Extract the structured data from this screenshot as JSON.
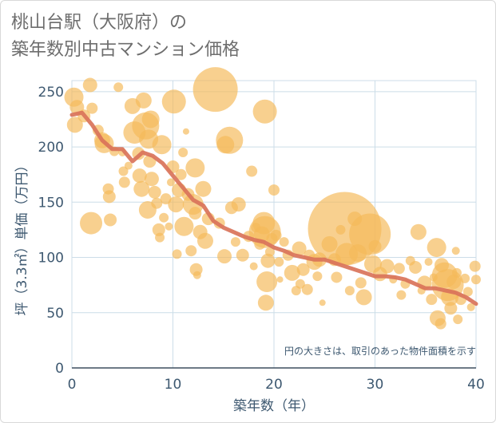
{
  "title_line1": "桃山台駅（大阪府）の",
  "title_line2": "築年数別中古マンション価格",
  "colors": {
    "bubble": "#f5b95a",
    "line": "#d9735a",
    "grid": "#ccdde8",
    "axis": "#3d4f5f",
    "text": "#3d5870"
  },
  "chart_data": {
    "type": "scatter",
    "xlabel": "築年数（年）",
    "ylabel": "坪（3.3㎡）単価（万円）",
    "xlim": [
      0,
      40
    ],
    "ylim": [
      0,
      260
    ],
    "xticks": [
      0,
      10,
      20,
      30,
      40
    ],
    "yticks": [
      0,
      50,
      100,
      150,
      200,
      250
    ],
    "annotation": "円の大きさは、取引のあった物件面積を示す",
    "grid": true,
    "trend_line": {
      "x": [
        0,
        1,
        2,
        3,
        4,
        5,
        6,
        7,
        8,
        9,
        10,
        11,
        12,
        13,
        14,
        15,
        16,
        17,
        18,
        19,
        20,
        21,
        22,
        23,
        24,
        25,
        26,
        27,
        28,
        29,
        30,
        31,
        32,
        33,
        34,
        35,
        36,
        37,
        38,
        39,
        40
      ],
      "y": [
        229,
        231,
        220,
        206,
        198,
        198,
        187,
        195,
        192,
        185,
        174,
        163,
        152,
        147,
        133,
        127,
        123,
        119,
        116,
        114,
        109,
        106,
        102,
        100,
        98,
        98,
        95,
        92,
        89,
        86,
        83,
        83,
        82,
        80,
        76,
        72,
        72,
        70,
        68,
        64,
        58
      ]
    },
    "bubbles": [
      {
        "x": 0.2,
        "y": 245,
        "s": 12
      },
      {
        "x": 0.3,
        "y": 220,
        "s": 10
      },
      {
        "x": 0.5,
        "y": 236,
        "s": 9
      },
      {
        "x": 1.2,
        "y": 228,
        "s": 8
      },
      {
        "x": 1.8,
        "y": 256,
        "s": 9
      },
      {
        "x": 2.0,
        "y": 235,
        "s": 7
      },
      {
        "x": 1.9,
        "y": 131,
        "s": 14
      },
      {
        "x": 2.6,
        "y": 215,
        "s": 7
      },
      {
        "x": 3.0,
        "y": 206,
        "s": 10
      },
      {
        "x": 3.2,
        "y": 203,
        "s": 12
      },
      {
        "x": 3.6,
        "y": 162,
        "s": 7
      },
      {
        "x": 3.8,
        "y": 134,
        "s": 8
      },
      {
        "x": 3.7,
        "y": 155,
        "s": 8
      },
      {
        "x": 4.2,
        "y": 196,
        "s": 6
      },
      {
        "x": 4.6,
        "y": 254,
        "s": 6
      },
      {
        "x": 5.0,
        "y": 195,
        "s": 5
      },
      {
        "x": 5.1,
        "y": 178,
        "s": 6
      },
      {
        "x": 5.2,
        "y": 168,
        "s": 7
      },
      {
        "x": 5.6,
        "y": 183,
        "s": 5
      },
      {
        "x": 6.0,
        "y": 237,
        "s": 10
      },
      {
        "x": 6.2,
        "y": 213,
        "s": 14
      },
      {
        "x": 6.6,
        "y": 194,
        "s": 8
      },
      {
        "x": 6.7,
        "y": 174,
        "s": 9
      },
      {
        "x": 6.9,
        "y": 162,
        "s": 10
      },
      {
        "x": 7.1,
        "y": 242,
        "s": 10
      },
      {
        "x": 7.3,
        "y": 219,
        "s": 17
      },
      {
        "x": 7.6,
        "y": 207,
        "s": 12
      },
      {
        "x": 7.8,
        "y": 225,
        "s": 11
      },
      {
        "x": 7.7,
        "y": 187,
        "s": 8
      },
      {
        "x": 7.9,
        "y": 171,
        "s": 9
      },
      {
        "x": 7.5,
        "y": 143,
        "s": 11
      },
      {
        "x": 8.2,
        "y": 159,
        "s": 8
      },
      {
        "x": 8.4,
        "y": 149,
        "s": 7
      },
      {
        "x": 8.6,
        "y": 125,
        "s": 8
      },
      {
        "x": 8.7,
        "y": 118,
        "s": 6
      },
      {
        "x": 8.9,
        "y": 202,
        "s": 12
      },
      {
        "x": 9.1,
        "y": 136,
        "s": 6
      },
      {
        "x": 9.3,
        "y": 153,
        "s": 7
      },
      {
        "x": 9.6,
        "y": 128,
        "s": 5
      },
      {
        "x": 9.8,
        "y": 168,
        "s": 5
      },
      {
        "x": 10.0,
        "y": 182,
        "s": 8
      },
      {
        "x": 10.1,
        "y": 241,
        "s": 15
      },
      {
        "x": 10.3,
        "y": 148,
        "s": 10
      },
      {
        "x": 10.4,
        "y": 103,
        "s": 6
      },
      {
        "x": 10.6,
        "y": 161,
        "s": 9
      },
      {
        "x": 10.8,
        "y": 175,
        "s": 7
      },
      {
        "x": 11.0,
        "y": 195,
        "s": 6
      },
      {
        "x": 11.3,
        "y": 214,
        "s": 4
      },
      {
        "x": 11.1,
        "y": 128,
        "s": 12
      },
      {
        "x": 11.5,
        "y": 157,
        "s": 8
      },
      {
        "x": 11.8,
        "y": 106,
        "s": 7
      },
      {
        "x": 12.0,
        "y": 148,
        "s": 13
      },
      {
        "x": 12.2,
        "y": 181,
        "s": 12
      },
      {
        "x": 12.2,
        "y": 140,
        "s": 8
      },
      {
        "x": 12.3,
        "y": 89,
        "s": 8
      },
      {
        "x": 12.4,
        "y": 84,
        "s": 5
      },
      {
        "x": 12.7,
        "y": 123,
        "s": 9
      },
      {
        "x": 13.0,
        "y": 162,
        "s": 10
      },
      {
        "x": 13.2,
        "y": 115,
        "s": 10
      },
      {
        "x": 13.5,
        "y": 135,
        "s": 8
      },
      {
        "x": 14.2,
        "y": 252,
        "s": 28
      },
      {
        "x": 14.6,
        "y": 131,
        "s": 7
      },
      {
        "x": 15.2,
        "y": 202,
        "s": 11
      },
      {
        "x": 15.1,
        "y": 101,
        "s": 9
      },
      {
        "x": 15.6,
        "y": 206,
        "s": 17
      },
      {
        "x": 15.8,
        "y": 145,
        "s": 8
      },
      {
        "x": 16.2,
        "y": 114,
        "s": 6
      },
      {
        "x": 16.5,
        "y": 148,
        "s": 9
      },
      {
        "x": 16.9,
        "y": 102,
        "s": 8
      },
      {
        "x": 17.5,
        "y": 119,
        "s": 7
      },
      {
        "x": 17.8,
        "y": 178,
        "s": 7
      },
      {
        "x": 18.0,
        "y": 92,
        "s": 5
      },
      {
        "x": 18.2,
        "y": 127,
        "s": 6
      },
      {
        "x": 18.6,
        "y": 112,
        "s": 7
      },
      {
        "x": 18.8,
        "y": 121,
        "s": 10
      },
      {
        "x": 19.0,
        "y": 131,
        "s": 14
      },
      {
        "x": 19.1,
        "y": 123,
        "s": 20
      },
      {
        "x": 19.1,
        "y": 232,
        "s": 15
      },
      {
        "x": 19.3,
        "y": 78,
        "s": 13
      },
      {
        "x": 19.2,
        "y": 59,
        "s": 10
      },
      {
        "x": 19.4,
        "y": 97,
        "s": 9
      },
      {
        "x": 19.6,
        "y": 105,
        "s": 6
      },
      {
        "x": 19.8,
        "y": 117,
        "s": 7
      },
      {
        "x": 20.0,
        "y": 161,
        "s": 7
      },
      {
        "x": 20.2,
        "y": 120,
        "s": 7
      },
      {
        "x": 20.5,
        "y": 96,
        "s": 6
      },
      {
        "x": 20.6,
        "y": 80,
        "s": 4
      },
      {
        "x": 21.0,
        "y": 114,
        "s": 6
      },
      {
        "x": 21.4,
        "y": 102,
        "s": 7
      },
      {
        "x": 21.8,
        "y": 86,
        "s": 10
      },
      {
        "x": 22.2,
        "y": 70,
        "s": 6
      },
      {
        "x": 22.5,
        "y": 108,
        "s": 9
      },
      {
        "x": 22.6,
        "y": 76,
        "s": 6
      },
      {
        "x": 22.9,
        "y": 89,
        "s": 8
      },
      {
        "x": 23.3,
        "y": 71,
        "s": 7
      },
      {
        "x": 23.5,
        "y": 102,
        "s": 7
      },
      {
        "x": 24.0,
        "y": 96,
        "s": 10
      },
      {
        "x": 24.3,
        "y": 83,
        "s": 6
      },
      {
        "x": 24.5,
        "y": 98,
        "s": 9
      },
      {
        "x": 24.8,
        "y": 59,
        "s": 4
      },
      {
        "x": 25.5,
        "y": 112,
        "s": 10
      },
      {
        "x": 26.0,
        "y": 98,
        "s": 8
      },
      {
        "x": 26.2,
        "y": 82,
        "s": 7
      },
      {
        "x": 26.6,
        "y": 125,
        "s": 6
      },
      {
        "x": 27.0,
        "y": 126,
        "s": 46
      },
      {
        "x": 27.2,
        "y": 103,
        "s": 14
      },
      {
        "x": 27.5,
        "y": 70,
        "s": 6
      },
      {
        "x": 28.0,
        "y": 135,
        "s": 9
      },
      {
        "x": 28.3,
        "y": 104,
        "s": 11
      },
      {
        "x": 28.6,
        "y": 77,
        "s": 7
      },
      {
        "x": 28.9,
        "y": 64,
        "s": 10
      },
      {
        "x": 29.5,
        "y": 121,
        "s": 26
      },
      {
        "x": 29.8,
        "y": 94,
        "s": 11
      },
      {
        "x": 30.0,
        "y": 110,
        "s": 8
      },
      {
        "x": 30.5,
        "y": 85,
        "s": 9
      },
      {
        "x": 31.2,
        "y": 92,
        "s": 9
      },
      {
        "x": 31.8,
        "y": 80,
        "s": 5
      },
      {
        "x": 32.4,
        "y": 90,
        "s": 7
      },
      {
        "x": 32.6,
        "y": 66,
        "s": 6
      },
      {
        "x": 33.0,
        "y": 76,
        "s": 6
      },
      {
        "x": 33.5,
        "y": 97,
        "s": 6
      },
      {
        "x": 34.0,
        "y": 91,
        "s": 8
      },
      {
        "x": 34.3,
        "y": 123,
        "s": 10
      },
      {
        "x": 34.6,
        "y": 70,
        "s": 5
      },
      {
        "x": 34.9,
        "y": 77,
        "s": 9
      },
      {
        "x": 35.3,
        "y": 96,
        "s": 5
      },
      {
        "x": 35.6,
        "y": 62,
        "s": 7
      },
      {
        "x": 35.8,
        "y": 82,
        "s": 5
      },
      {
        "x": 36.1,
        "y": 109,
        "s": 12
      },
      {
        "x": 36.2,
        "y": 45,
        "s": 10
      },
      {
        "x": 36.5,
        "y": 40,
        "s": 7
      },
      {
        "x": 36.6,
        "y": 93,
        "s": 9
      },
      {
        "x": 36.9,
        "y": 84,
        "s": 16
      },
      {
        "x": 37.2,
        "y": 75,
        "s": 20
      },
      {
        "x": 37.4,
        "y": 64,
        "s": 11
      },
      {
        "x": 37.5,
        "y": 54,
        "s": 8
      },
      {
        "x": 37.8,
        "y": 78,
        "s": 9
      },
      {
        "x": 38.0,
        "y": 106,
        "s": 5
      },
      {
        "x": 38.1,
        "y": 86,
        "s": 6
      },
      {
        "x": 38.2,
        "y": 44,
        "s": 6
      },
      {
        "x": 38.5,
        "y": 62,
        "s": 7
      },
      {
        "x": 38.9,
        "y": 81,
        "s": 6
      },
      {
        "x": 39.2,
        "y": 69,
        "s": 6
      },
      {
        "x": 39.5,
        "y": 55,
        "s": 5
      },
      {
        "x": 39.9,
        "y": 92,
        "s": 7
      },
      {
        "x": 40.0,
        "y": 80,
        "s": 6
      }
    ]
  }
}
